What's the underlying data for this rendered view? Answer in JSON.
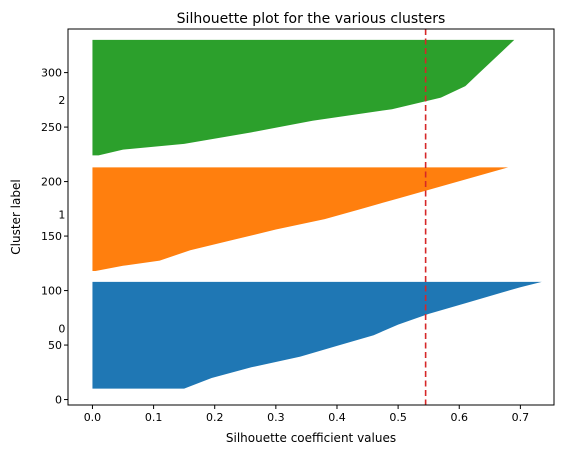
{
  "chart_data": {
    "type": "area",
    "title": "Silhouette plot for the various clusters",
    "xlabel": "Silhouette coefficient values",
    "ylabel": "Cluster label",
    "xlim": [
      -0.04,
      0.755
    ],
    "ylim": [
      -5,
      340
    ],
    "xticks": [
      "0.0",
      "0.1",
      "0.2",
      "0.3",
      "0.4",
      "0.5",
      "0.6",
      "0.7"
    ],
    "yticks": [
      "0",
      "50",
      "100",
      "150",
      "200",
      "250",
      "300"
    ],
    "average_line": {
      "value": 0.545,
      "color": "#d62728"
    },
    "series": [
      {
        "label": "0",
        "color": "#1f77b4",
        "label_y": 65,
        "y_start": 10,
        "y_end": 108,
        "profile": [
          [
            0,
            0.15
          ],
          [
            0.1,
            0.195
          ],
          [
            0.2,
            0.26
          ],
          [
            0.3,
            0.34
          ],
          [
            0.4,
            0.4
          ],
          [
            0.5,
            0.46
          ],
          [
            0.6,
            0.5
          ],
          [
            0.7,
            0.55
          ],
          [
            0.8,
            0.61
          ],
          [
            0.9,
            0.67
          ],
          [
            0.95,
            0.7
          ],
          [
            1,
            0.735
          ]
        ]
      },
      {
        "label": "1",
        "color": "#ff7f0e",
        "label_y": 170,
        "y_start": 118,
        "y_end": 213,
        "profile": [
          [
            0,
            0.005
          ],
          [
            0.05,
            0.05
          ],
          [
            0.1,
            0.11
          ],
          [
            0.2,
            0.16
          ],
          [
            0.3,
            0.23
          ],
          [
            0.4,
            0.3
          ],
          [
            0.5,
            0.38
          ],
          [
            0.6,
            0.44
          ],
          [
            0.7,
            0.5
          ],
          [
            0.8,
            0.56
          ],
          [
            0.9,
            0.62
          ],
          [
            1,
            0.68
          ]
        ]
      },
      {
        "label": "2",
        "color": "#2ca02c",
        "label_y": 275,
        "y_start": 224,
        "y_end": 330,
        "profile": [
          [
            0,
            0.01
          ],
          [
            0.05,
            0.05
          ],
          [
            0.1,
            0.15
          ],
          [
            0.2,
            0.26
          ],
          [
            0.3,
            0.36
          ],
          [
            0.4,
            0.49
          ],
          [
            0.5,
            0.57
          ],
          [
            0.6,
            0.61
          ],
          [
            0.7,
            0.63
          ],
          [
            0.8,
            0.65
          ],
          [
            0.9,
            0.67
          ],
          [
            1,
            0.69
          ]
        ]
      }
    ]
  }
}
